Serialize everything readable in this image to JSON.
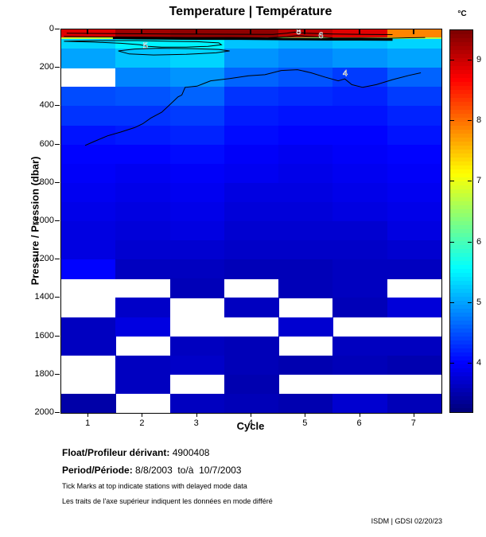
{
  "title": "Temperature | Température",
  "colorbar": {
    "unit": "°C",
    "vmin": 3.2,
    "vmax": 9.5,
    "ticks": [
      9,
      8,
      7,
      6,
      5,
      4
    ]
  },
  "x_axis": {
    "label": "Cycle",
    "ticks": [
      1,
      2,
      3,
      4,
      5,
      6,
      7
    ],
    "range": [
      0.5,
      7.5
    ]
  },
  "y_axis": {
    "label": "Pressure / Pression (dbar)",
    "ticks": [
      0,
      200,
      400,
      600,
      800,
      1000,
      1200,
      1400,
      1600,
      1800,
      2000
    ],
    "range": [
      0,
      2000
    ]
  },
  "footer": {
    "float_label": "Float/Profileur dérivant:",
    "float_value": "4900408",
    "period_label": "Period/Période:",
    "period_value": "8/8/2003  to/à  10/7/2003",
    "note_en": "Tick Marks at top indicate stations with delayed mode data",
    "note_fr": "Les traits de l'axe supérieur indiquent les données en mode différé",
    "credit": "ISDM | GDSI 02/20/23"
  },
  "chart_data": {
    "type": "heatmap",
    "title": "Temperature | Température",
    "xlabel": "Cycle",
    "ylabel": "Pressure / Pression (dbar)",
    "value_unit": "°C",
    "colormap": "jet",
    "value_range": [
      3.2,
      9.5
    ],
    "legend_position": "right-colorbar",
    "cycles": [
      1,
      2,
      3,
      4,
      5,
      6,
      7
    ],
    "pressure_bins_dbar": [
      [
        0,
        40
      ],
      [
        40,
        48
      ],
      [
        48,
        100
      ],
      [
        100,
        200
      ],
      [
        200,
        300
      ],
      [
        300,
        400
      ],
      [
        400,
        500
      ],
      [
        500,
        600
      ],
      [
        600,
        700
      ],
      [
        700,
        800
      ],
      [
        800,
        900
      ],
      [
        900,
        1000
      ],
      [
        1000,
        1100
      ],
      [
        1100,
        1200
      ],
      [
        1200,
        1300
      ],
      [
        1300,
        1400
      ],
      [
        1400,
        1500
      ],
      [
        1500,
        1600
      ],
      [
        1600,
        1700
      ],
      [
        1700,
        1800
      ],
      [
        1800,
        1900
      ],
      [
        1900,
        2000
      ]
    ],
    "temperature_grid": [
      [
        8.9,
        9.3,
        9.4,
        9.4,
        9.1,
        8.9,
        7.9
      ],
      [
        6.8,
        6.7,
        6.7,
        6.6,
        6.5,
        6.5,
        6.6
      ],
      [
        5.3,
        5.5,
        5.5,
        5.2,
        5.1,
        5.2,
        5.3
      ],
      [
        5.0,
        5.2,
        5.3,
        4.9,
        4.8,
        4.9,
        5.0
      ],
      [
        null,
        4.8,
        4.9,
        4.6,
        4.5,
        4.35,
        4.6
      ],
      [
        4.45,
        4.5,
        4.6,
        4.3,
        4.25,
        4.2,
        4.35
      ],
      [
        4.3,
        4.3,
        4.35,
        4.15,
        4.1,
        4.1,
        4.2
      ],
      [
        4.1,
        4.15,
        4.2,
        4.05,
        4.0,
        4.0,
        4.1
      ],
      [
        4.0,
        4.0,
        4.05,
        3.95,
        3.9,
        3.95,
        4.0
      ],
      [
        3.95,
        3.9,
        3.95,
        3.9,
        3.85,
        3.9,
        3.95
      ],
      [
        3.9,
        3.85,
        3.9,
        3.8,
        3.8,
        3.85,
        3.9
      ],
      [
        3.85,
        3.8,
        3.85,
        3.75,
        3.75,
        3.8,
        3.85
      ],
      [
        3.8,
        3.75,
        3.8,
        3.7,
        3.7,
        3.7,
        3.8
      ],
      [
        3.8,
        3.7,
        3.7,
        3.65,
        3.65,
        3.65,
        3.7
      ],
      [
        4.0,
        3.6,
        3.6,
        3.55,
        3.55,
        3.6,
        3.6
      ],
      [
        null,
        null,
        3.55,
        null,
        3.55,
        3.6,
        null
      ],
      [
        null,
        3.65,
        null,
        3.6,
        null,
        3.55,
        3.75
      ],
      [
        3.6,
        3.8,
        null,
        null,
        3.7,
        null,
        null
      ],
      [
        3.6,
        null,
        3.6,
        3.55,
        null,
        3.6,
        3.6
      ],
      [
        null,
        3.6,
        3.65,
        3.55,
        3.5,
        3.55,
        3.5
      ],
      [
        null,
        3.6,
        null,
        3.5,
        null,
        null,
        null
      ],
      [
        3.45,
        null,
        3.6,
        3.55,
        3.5,
        3.7,
        3.55
      ]
    ],
    "missing_data_color": "#ffffff",
    "contours": [
      {
        "label": "8",
        "label_at": [
          4.87,
          8
        ],
        "width": 1,
        "points": [
          [
            0.6,
            20
          ],
          [
            1.5,
            22
          ],
          [
            2.5,
            24
          ],
          [
            3.5,
            25
          ],
          [
            4.4,
            26
          ],
          [
            4.65,
            20
          ],
          [
            4.8,
            14
          ],
          [
            5.0,
            20
          ],
          [
            5.5,
            24
          ],
          [
            6.1,
            26
          ],
          [
            6.6,
            27
          ]
        ]
      },
      {
        "label": "",
        "label_at": null,
        "width": 3,
        "points": [
          [
            1.45,
            44
          ],
          [
            2.2,
            47
          ],
          [
            3.0,
            48
          ],
          [
            3.8,
            48
          ],
          [
            4.6,
            50
          ],
          [
            5.4,
            52
          ],
          [
            6.0,
            52
          ],
          [
            6.6,
            53
          ]
        ]
      },
      {
        "label": "6",
        "label_at": [
          5.28,
          30
        ],
        "width": 1,
        "points": [
          [
            0.55,
            36
          ],
          [
            1.2,
            38
          ],
          [
            2.0,
            40
          ],
          [
            2.8,
            42
          ],
          [
            3.6,
            42
          ],
          [
            4.3,
            44
          ],
          [
            4.65,
            38
          ],
          [
            4.85,
            32
          ],
          [
            5.05,
            36
          ],
          [
            5.28,
            40
          ],
          [
            5.5,
            44
          ],
          [
            6.0,
            45
          ],
          [
            6.5,
            46
          ],
          [
            7.2,
            42
          ]
        ]
      },
      {
        "label": "5",
        "label_at": [
          2.05,
          82
        ],
        "width": 1,
        "points": [
          [
            0.55,
            62
          ],
          [
            1.1,
            66
          ],
          [
            1.6,
            72
          ],
          [
            1.95,
            80
          ],
          [
            2.1,
            88
          ],
          [
            2.35,
            92
          ],
          [
            2.8,
            92
          ],
          [
            3.2,
            88
          ],
          [
            3.45,
            80
          ],
          [
            3.4,
            70
          ],
          [
            3.0,
            64
          ],
          [
            2.5,
            62
          ],
          [
            1.9,
            58
          ],
          [
            1.3,
            58
          ],
          [
            0.8,
            60
          ],
          [
            0.55,
            62
          ]
        ]
      },
      {
        "label": "",
        "label_at": null,
        "width": 1,
        "points": [
          [
            1.55,
            112
          ],
          [
            1.85,
            102
          ],
          [
            2.3,
            98
          ],
          [
            2.9,
            100
          ],
          [
            3.4,
            104
          ],
          [
            3.6,
            112
          ],
          [
            3.35,
            122
          ],
          [
            2.8,
            130
          ],
          [
            2.2,
            133
          ],
          [
            1.75,
            128
          ],
          [
            1.55,
            112
          ]
        ]
      },
      {
        "label": "4",
        "label_at": [
          5.73,
          226
        ],
        "width": 1,
        "points": [
          [
            0.94,
            605
          ],
          [
            1.1,
            585
          ],
          [
            1.35,
            555
          ],
          [
            1.6,
            535
          ],
          [
            1.85,
            512
          ],
          [
            2.0,
            492
          ],
          [
            2.15,
            462
          ],
          [
            2.35,
            432
          ],
          [
            2.5,
            392
          ],
          [
            2.65,
            352
          ],
          [
            2.72,
            342
          ],
          [
            2.78,
            302
          ],
          [
            3.0,
            296
          ],
          [
            3.25,
            268
          ],
          [
            3.6,
            256
          ],
          [
            3.95,
            242
          ],
          [
            4.25,
            236
          ],
          [
            4.55,
            214
          ],
          [
            4.85,
            210
          ],
          [
            5.1,
            226
          ],
          [
            5.35,
            248
          ],
          [
            5.6,
            268
          ],
          [
            5.72,
            258
          ],
          [
            5.85,
            288
          ],
          [
            6.05,
            302
          ],
          [
            6.3,
            288
          ],
          [
            6.6,
            262
          ],
          [
            6.9,
            240
          ],
          [
            7.12,
            226
          ]
        ]
      }
    ],
    "delayed_mode_tick_cycles": [
      1,
      2,
      3,
      4,
      5,
      6,
      7
    ]
  }
}
